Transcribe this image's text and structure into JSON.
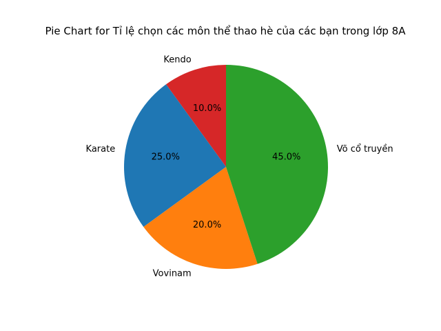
{
  "chart_data": {
    "type": "pie",
    "title": "Pie Chart for Tỉ lệ chọn các môn thể thao hè của các bạn trong lớp 8A",
    "start_angle_deg": 90,
    "direction": "counterclockwise",
    "slices": [
      {
        "label": "Kendo",
        "value": 10.0,
        "pct_label": "10.0%",
        "color": "#d62728"
      },
      {
        "label": "Karate",
        "value": 25.0,
        "pct_label": "25.0%",
        "color": "#1f77b4"
      },
      {
        "label": "Vovinam",
        "value": 20.0,
        "pct_label": "20.0%",
        "color": "#ff7f0e"
      },
      {
        "label": "Võ cổ truyền",
        "value": 45.0,
        "pct_label": "45.0%",
        "color": "#2ca02c"
      }
    ]
  }
}
